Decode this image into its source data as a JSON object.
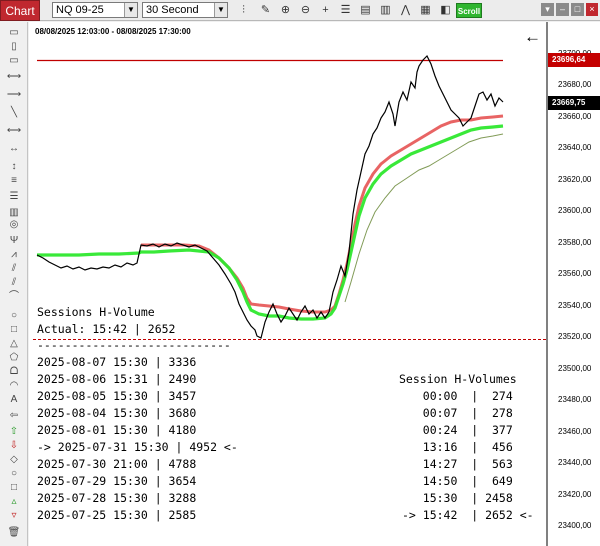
{
  "toolbar": {
    "tab_label": "Chart",
    "instrument": "NQ 09-25",
    "interval": "30 Second",
    "scroll_label": "Scroll"
  },
  "chart": {
    "date_range": "08/08/2025 12:03:00 - 08/08/2025 17:30:00",
    "price_labels": [
      "23700,00",
      "23680,00",
      "23660,00",
      "23640,00",
      "23620,00",
      "23600,00",
      "23580,00",
      "23560,00",
      "23540,00",
      "23520,00",
      "23500,00",
      "23480,00",
      "23460,00",
      "23440,00",
      "23420,00",
      "23400,00"
    ],
    "badge_red": "23696,64",
    "badge_black": "23669,75",
    "colors": {
      "price": "#000000",
      "resistance": "#c00000",
      "band_green": "#2ee82e",
      "band_red": "#e03030"
    }
  },
  "sessions": {
    "title": "Sessions H-Volume",
    "actual": "Actual: 15:42 | 2652",
    "divider": "----------------------------",
    "rows": [
      "2025-08-07 15:30 | 3336",
      "2025-08-06 15:31 | 2490",
      "2025-08-05 15:30 | 3457",
      "2025-08-04 15:30 | 3680",
      "2025-08-01 15:30 | 4180",
      "-> 2025-07-31 15:30 | 4952 <-",
      "2025-07-30 21:00 | 4788",
      "2025-07-29 15:30 | 3654",
      "2025-07-28 15:30 | 3288",
      "2025-07-25 15:30 | 2585"
    ]
  },
  "hvolumes": {
    "title": "Session H-Volumes",
    "rows": [
      "   00:00  |  274",
      "   00:07  |  278",
      "   00:24  |  377",
      "   13:16  |  456",
      "   14:27  |  563",
      "   14:50  |  649",
      "   15:30  | 2458",
      "-> 15:42  | 2652 <-"
    ]
  }
}
